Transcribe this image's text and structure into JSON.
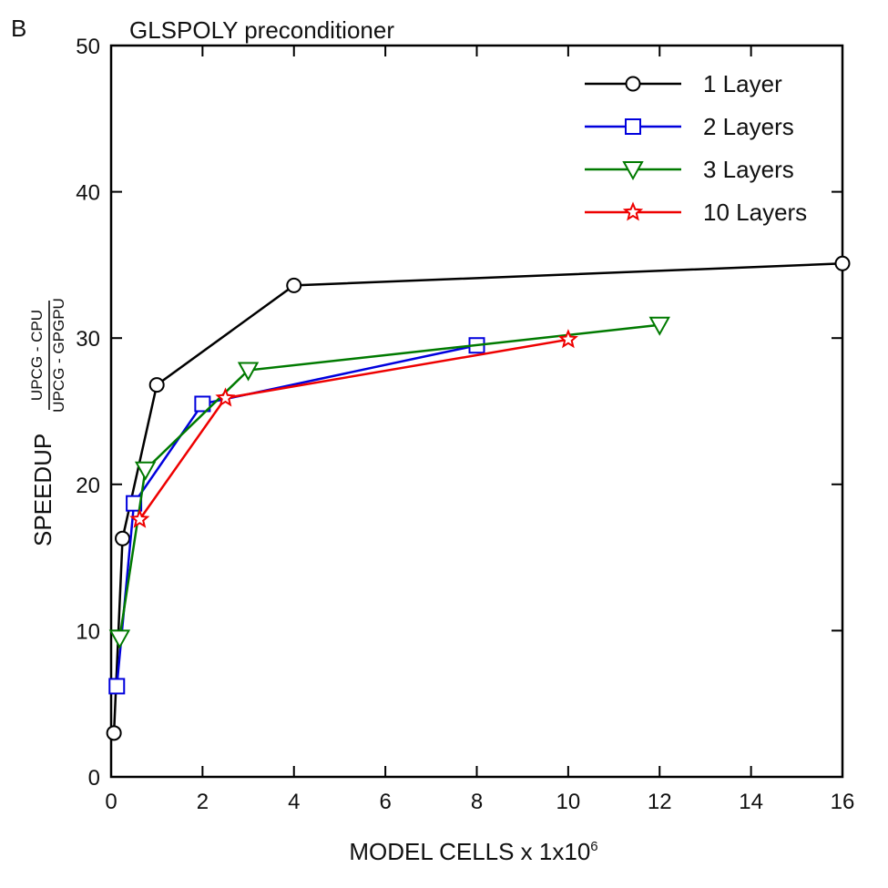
{
  "panel_label": "B",
  "chart_data": {
    "type": "line",
    "title": "GLSPOLY preconditioner",
    "xlabel": "MODEL CELLS x 1x10",
    "xlabel_exponent": "6",
    "ylabel": "SPEEDUP",
    "ylabel_numerator": "UPCG - CPU",
    "ylabel_denominator": "UPCG - GPGPU",
    "xlim": [
      0,
      16
    ],
    "ylim": [
      0,
      50
    ],
    "xticks": [
      "0",
      "2",
      "4",
      "6",
      "8",
      "10",
      "12",
      "14",
      "16"
    ],
    "yticks": [
      "0",
      "10",
      "20",
      "30",
      "40",
      "50"
    ],
    "grid": false,
    "legend_position": "top-right",
    "series": [
      {
        "name": "1 Layer",
        "color": "#000000",
        "marker": "circle",
        "x": [
          0.0625,
          0.25,
          1,
          4,
          16
        ],
        "y": [
          3.0,
          16.3,
          26.8,
          33.6,
          35.1
        ]
      },
      {
        "name": "2 Layers",
        "color": "#0000dd",
        "marker": "square",
        "x": [
          0.125,
          0.5,
          2,
          8
        ],
        "y": [
          6.2,
          18.7,
          25.5,
          29.5
        ]
      },
      {
        "name": "3 Layers",
        "color": "#007a00",
        "marker": "triangle-down",
        "x": [
          0.1875,
          0.75,
          3,
          12
        ],
        "y": [
          9.5,
          21.0,
          27.8,
          30.9
        ]
      },
      {
        "name": "10 Layers",
        "color": "#ee0000",
        "marker": "star",
        "x": [
          0.625,
          2.5,
          10
        ],
        "y": [
          17.6,
          25.9,
          29.9
        ]
      }
    ]
  }
}
